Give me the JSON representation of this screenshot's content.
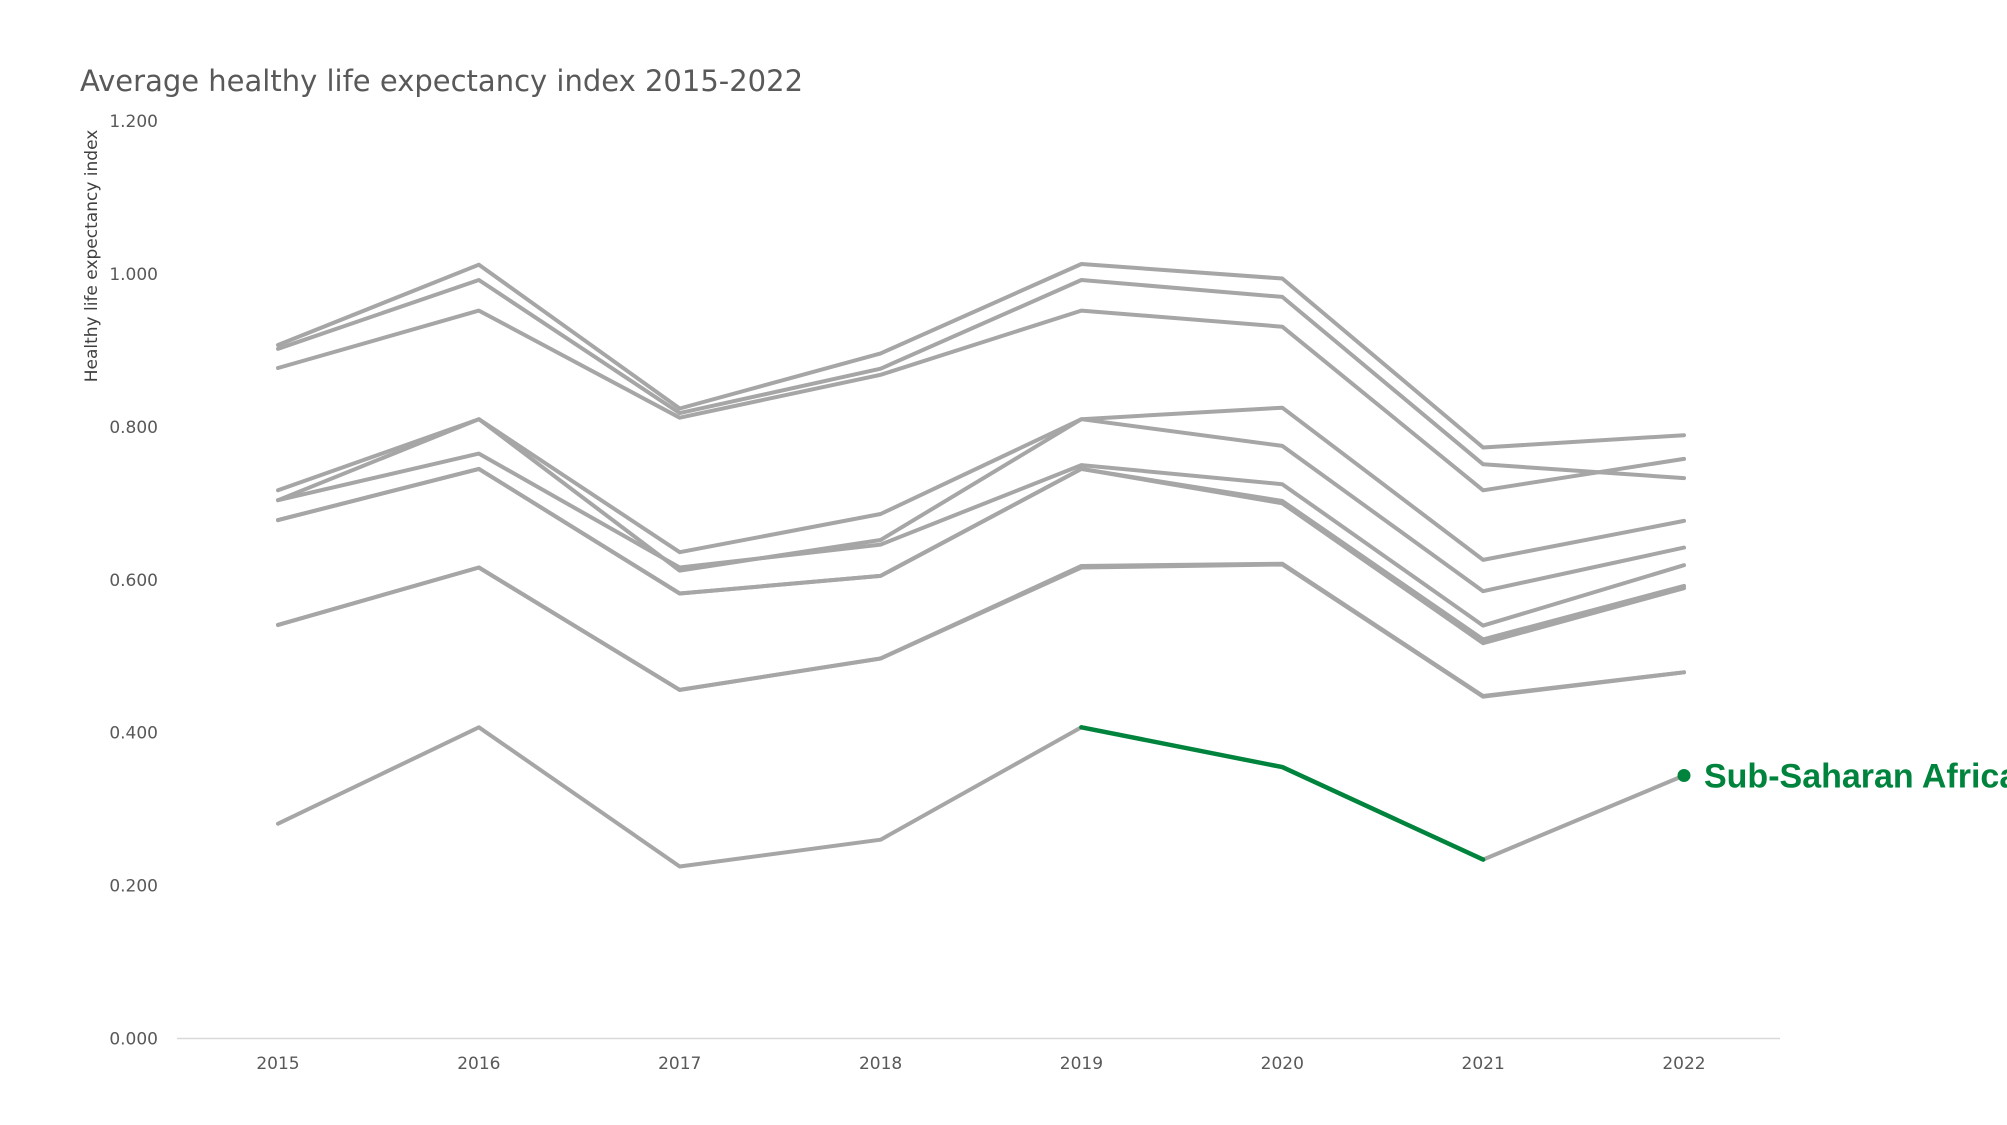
{
  "chart_data": {
    "type": "line",
    "title": "Average healthy life expectancy index 2015-2022",
    "xlabel": "",
    "ylabel": "Healthy life expectancy index",
    "x": [
      "2015",
      "2016",
      "2017",
      "2018",
      "2019",
      "2020",
      "2021",
      "2022"
    ],
    "ylim": [
      0,
      1.2
    ],
    "yticks": [
      "0.000",
      "0.200",
      "0.400",
      "0.600",
      "0.800",
      "1.000",
      "1.200"
    ],
    "grid": false,
    "colors": {
      "series": "#a6a6a6",
      "highlight": "#00843d",
      "axis": "#d9d9d9"
    },
    "series": [
      {
        "values": [
          0.907,
          1.012,
          0.824,
          0.896,
          1.013,
          0.994,
          0.773,
          0.789
        ]
      },
      {
        "values": [
          0.902,
          0.992,
          0.818,
          0.876,
          0.992,
          0.97,
          0.751,
          0.733
        ]
      },
      {
        "values": [
          0.877,
          0.952,
          0.812,
          0.868,
          0.952,
          0.931,
          0.717,
          0.758
        ]
      },
      {
        "values": [
          0.717,
          0.81,
          0.636,
          0.686,
          0.81,
          0.825,
          0.626,
          0.677
        ]
      },
      {
        "values": [
          0.704,
          0.81,
          0.612,
          0.652,
          0.81,
          0.775,
          0.585,
          0.642
        ]
      },
      {
        "values": [
          0.704,
          0.765,
          0.616,
          0.646,
          0.75,
          0.725,
          0.54,
          0.619
        ]
      },
      {
        "values": [
          0.678,
          0.745,
          0.582,
          0.605,
          0.745,
          0.703,
          0.522,
          0.592
        ]
      },
      {
        "values": [
          0.678,
          0.745,
          0.582,
          0.605,
          0.745,
          0.7,
          0.517,
          0.589
        ]
      },
      {
        "values": [
          0.541,
          0.616,
          0.456,
          0.497,
          0.616,
          0.62,
          0.447,
          0.479
        ]
      },
      {
        "values": [
          0.541,
          0.616,
          0.456,
          0.497,
          0.618,
          0.621,
          0.448,
          0.479
        ]
      },
      {
        "values": [
          0.281,
          0.407,
          0.225,
          0.26,
          0.407,
          0.355,
          0.234,
          0.344
        ]
      }
    ],
    "highlight": {
      "name": "Sub-Saharan Africa",
      "values": [
        0.281,
        0.407,
        0.225,
        0.26,
        0.407,
        0.355,
        0.234,
        0.344
      ],
      "highlight_from": "2019",
      "highlight_to": "2021"
    }
  }
}
